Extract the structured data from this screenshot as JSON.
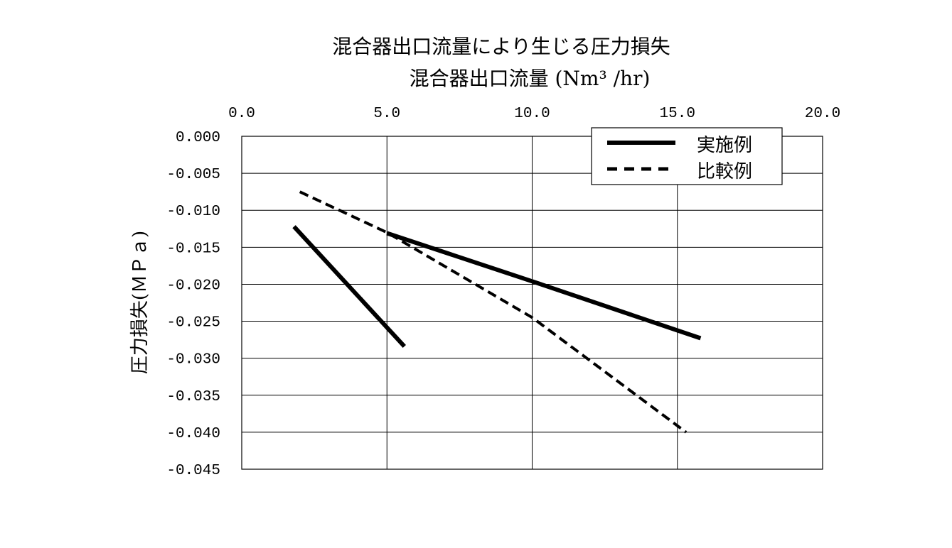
{
  "chart_data": {
    "type": "line",
    "title": "混合器出口流量により生じる圧力損失",
    "xlabel": "混合器出口流量 (Nm³ /hr)",
    "ylabel": "圧力損失(ＭＰａ)",
    "xlim": [
      0.0,
      20.0
    ],
    "ylim": [
      -0.045,
      0.0
    ],
    "x_ticks": [
      "0.0",
      "5.0",
      "10.0",
      "15.0",
      "20.0"
    ],
    "y_ticks": [
      "0.000",
      "-0.005",
      "-0.010",
      "-0.015",
      "-0.020",
      "-0.025",
      "-0.030",
      "-0.035",
      "-0.040",
      "-0.045"
    ],
    "x_tick_values": [
      0,
      5,
      10,
      15,
      20
    ],
    "y_tick_values": [
      0.0,
      -0.005,
      -0.01,
      -0.015,
      -0.02,
      -0.025,
      -0.03,
      -0.035,
      -0.04,
      -0.045
    ],
    "grid": true,
    "x_axis_position": "top",
    "legend_position": "top-right",
    "series": [
      {
        "name": "実施例",
        "style": "solid",
        "color": "#000000",
        "segments": [
          [
            [
              1.8,
              -0.0122
            ],
            [
              5.6,
              -0.0284
            ]
          ],
          [
            [
              5.0,
              -0.0131
            ],
            [
              10.0,
              -0.0196
            ],
            [
              15.8,
              -0.0273
            ]
          ]
        ]
      },
      {
        "name": "比較例",
        "style": "dashed",
        "color": "#000000",
        "segments": [
          [
            [
              2.0,
              -0.0075
            ],
            [
              5.0,
              -0.013
            ],
            [
              10.0,
              -0.0245
            ],
            [
              15.3,
              -0.04
            ]
          ]
        ]
      }
    ]
  }
}
